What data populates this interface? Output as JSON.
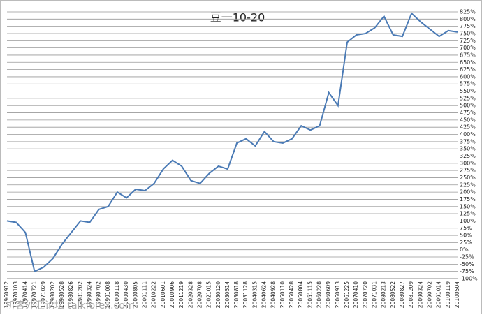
{
  "chart_data": {
    "type": "line",
    "title": "豆一10-20",
    "categories": [
      "19960912",
      "19970103",
      "19970414",
      "19970721",
      "19971029",
      "19980202",
      "19980528",
      "19980826",
      "19981202",
      "19990324",
      "19990702",
      "19991008",
      "20000118",
      "20000430",
      "20000805",
      "20001111",
      "20010222",
      "20010601",
      "20010906",
      "20011219",
      "20020328",
      "20020708",
      "20021015",
      "20030120",
      "20030514",
      "20030818",
      "20031128",
      "20040315",
      "20040624",
      "20040928",
      "20050110",
      "20050428",
      "20050804",
      "20051115",
      "20060228",
      "20060609",
      "20060913",
      "20061225",
      "20070410",
      "20070720",
      "20071031",
      "20080213",
      "20080522",
      "20080827",
      "20081209",
      "20090324",
      "20090702",
      "20091014",
      "20100119",
      "20100504"
    ],
    "series": [
      {
        "color": "#4a7ab5",
        "values": [
          100,
          95,
          60,
          -75,
          -60,
          -30,
          20,
          60,
          100,
          95,
          140,
          150,
          200,
          180,
          210,
          205,
          230,
          280,
          310,
          290,
          240,
          230,
          265,
          290,
          280,
          370,
          385,
          360,
          410,
          375,
          370,
          385,
          430,
          415,
          430,
          545,
          500,
          720,
          745,
          750,
          770,
          810,
          745,
          740,
          820,
          790,
          765,
          740,
          760,
          755
        ]
      }
    ],
    "ylim": [
      -100,
      825
    ],
    "yticks": [
      {
        "value": -100,
        "label": "-100%"
      },
      {
        "value": -75,
        "label": "-75%"
      },
      {
        "value": -50,
        "label": "-50%"
      },
      {
        "value": -25,
        "label": "-25%"
      },
      {
        "value": 0,
        "label": "0%"
      },
      {
        "value": 25,
        "label": "25%"
      },
      {
        "value": 50,
        "label": "50%"
      },
      {
        "value": 75,
        "label": "75%"
      },
      {
        "value": 100,
        "label": "100%"
      },
      {
        "value": 125,
        "label": "125%"
      },
      {
        "value": 150,
        "label": "150%"
      },
      {
        "value": 175,
        "label": "175%"
      },
      {
        "value": 200,
        "label": "200%"
      },
      {
        "value": 225,
        "label": "225%"
      },
      {
        "value": 250,
        "label": "250%"
      },
      {
        "value": 275,
        "label": "275%"
      },
      {
        "value": 300,
        "label": "300%"
      },
      {
        "value": 325,
        "label": "325%"
      },
      {
        "value": 350,
        "label": "350%"
      },
      {
        "value": 375,
        "label": "375%"
      },
      {
        "value": 400,
        "label": "400%"
      },
      {
        "value": 425,
        "label": "425%"
      },
      {
        "value": 450,
        "label": "450%"
      },
      {
        "value": 475,
        "label": "475%"
      },
      {
        "value": 500,
        "label": "500%"
      },
      {
        "value": 525,
        "label": "525%"
      },
      {
        "value": 550,
        "label": "550%"
      },
      {
        "value": 575,
        "label": "575%"
      },
      {
        "value": 600,
        "label": "600%"
      },
      {
        "value": 625,
        "label": "625%"
      },
      {
        "value": 650,
        "label": "650%"
      },
      {
        "value": 675,
        "label": "675%"
      },
      {
        "value": 700,
        "label": "700%"
      },
      {
        "value": 725,
        "label": "725%"
      },
      {
        "value": 750,
        "label": "750%"
      },
      {
        "value": 775,
        "label": "775%"
      },
      {
        "value": 800,
        "label": "800%"
      },
      {
        "value": 825,
        "label": "825%"
      }
    ],
    "grid": true,
    "watermark": "析客外汇论坛 talkforex.com"
  }
}
